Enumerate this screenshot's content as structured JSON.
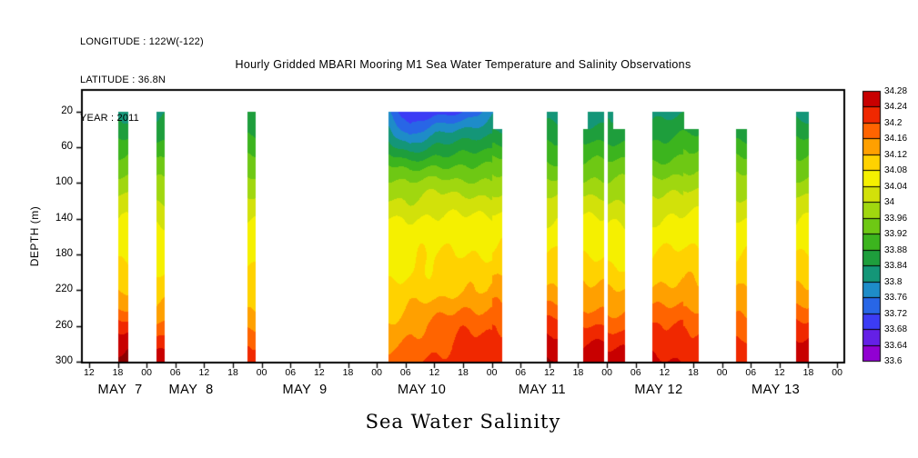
{
  "header": {
    "line1": "LONGITUDE : 122W(-122)",
    "line2": "LATITUDE : 36.8N",
    "line3": "YEAR : 2011"
  },
  "title": "Hourly Gridded MBARI Mooring M1 Sea Water Temperature and Salinity Observations",
  "bottom_label": "Sea Water Salinity",
  "chart_data": {
    "type": "heatmap",
    "title": "Hourly Gridded MBARI Mooring M1 Sea Water Temperature and Salinity Observations",
    "xlabel": "Sea Water Salinity",
    "ylabel": "DEPTH (m)",
    "y_ticks": [
      20,
      60,
      100,
      140,
      180,
      220,
      260,
      300
    ],
    "y_range_depth": [
      -4,
      301
    ],
    "x_range_hours": [
      10.5,
      169.5
    ],
    "x_tick_start_hour": 12,
    "x_tick_step_hours": 6,
    "x_tick_labels": [
      "12",
      "18",
      "00",
      "06",
      "12",
      "18",
      "00",
      "06",
      "12",
      "18",
      "00",
      "06",
      "12",
      "18",
      "00",
      "06",
      "12",
      "18",
      "00",
      "06",
      "12",
      "18",
      "00",
      "06",
      "12",
      "18",
      "00"
    ],
    "day_labels": [
      {
        "label": "MAY  7",
        "hour": 18.5
      },
      {
        "label": "MAY  8",
        "hour": 33.3
      },
      {
        "label": "MAY  9",
        "hour": 57.0
      },
      {
        "label": "MAY 10",
        "hour": 81.4
      },
      {
        "label": "MAY 11",
        "hour": 106.5
      },
      {
        "label": "MAY 12",
        "hour": 130.8
      },
      {
        "label": "MAY 13",
        "hour": 155.2
      }
    ],
    "colorbar": {
      "levels": [
        33.6,
        33.64,
        33.68,
        33.72,
        33.76,
        33.8,
        33.84,
        33.88,
        33.92,
        33.96,
        34.0,
        34.04,
        34.08,
        34.12,
        34.16,
        34.2,
        34.24,
        34.28
      ],
      "labels_top_to_bottom": [
        "34.28",
        "34.24",
        "34.2",
        "34.16",
        "34.12",
        "34.08",
        "34.04",
        "34",
        "33.96",
        "33.92",
        "33.88",
        "33.84",
        "33.8",
        "33.76",
        "33.72",
        "33.68",
        "33.64",
        "33.6"
      ],
      "colors_ascending": [
        "#9100d2",
        "#6420e6",
        "#3c3cf5",
        "#2866e6",
        "#1e8cc8",
        "#149678",
        "#1e9e3c",
        "#3cb41e",
        "#6ec814",
        "#a0d70f",
        "#d2e10a",
        "#f5f000",
        "#ffd200",
        "#ffa000",
        "#ff6400",
        "#f02800",
        "#c80000"
      ],
      "over_color": "#8c0000",
      "under_color": "#d200f0"
    },
    "depth_levels": [
      20,
      40,
      60,
      80,
      100,
      120,
      140,
      160,
      180,
      200,
      220,
      240,
      260,
      280,
      300
    ],
    "segments": [
      {
        "start": 18.0,
        "end": 20.0,
        "top": 20,
        "keyframes": [
          {
            "f": 0,
            "v": [
              33.83,
              33.86,
              33.9,
              33.94,
              33.98,
              34.01,
              34.04,
              34.06,
              34.07,
              34.09,
              34.12,
              34.16,
              34.22,
              34.27,
              34.3
            ]
          }
        ]
      },
      {
        "start": 26.0,
        "end": 27.5,
        "top": 20,
        "keyframes": [
          {
            "f": 0,
            "v": [
              33.83,
              33.86,
              33.89,
              33.93,
              33.97,
              34.0,
              34.03,
              34.05,
              34.06,
              34.08,
              34.1,
              34.13,
              34.17,
              34.22,
              34.26
            ]
          }
        ]
      },
      {
        "start": 45.0,
        "end": 46.5,
        "top": 20,
        "keyframes": [
          {
            "f": 0,
            "v": [
              33.84,
              33.87,
              33.9,
              33.94,
              33.98,
              34.01,
              34.04,
              34.06,
              34.07,
              34.08,
              34.1,
              34.12,
              34.15,
              34.19,
              34.23
            ]
          }
        ]
      },
      {
        "start": 74.5,
        "end": 96.0,
        "top": 20,
        "keyframes": [
          {
            "f": 0.0,
            "v": [
              33.76,
              33.81,
              33.86,
              33.92,
              33.97,
              34.01,
              34.04,
              34.05,
              34.06,
              34.07,
              34.08,
              34.1,
              34.13,
              34.15,
              34.17
            ]
          },
          {
            "f": 0.2,
            "v": [
              33.67,
              33.73,
              33.82,
              33.9,
              33.96,
              34.0,
              34.04,
              34.06,
              34.07,
              34.08,
              34.1,
              34.12,
              34.15,
              34.17,
              34.19
            ]
          },
          {
            "f": 0.45,
            "v": [
              33.7,
              33.78,
              33.85,
              33.92,
              33.98,
              34.02,
              34.05,
              34.07,
              34.08,
              34.09,
              34.1,
              34.14,
              34.17,
              34.19,
              34.21
            ]
          },
          {
            "f": 0.7,
            "v": [
              33.72,
              33.8,
              33.86,
              33.92,
              33.97,
              34.01,
              34.05,
              34.07,
              34.08,
              34.1,
              34.12,
              34.16,
              34.19,
              34.21,
              34.22
            ]
          },
          {
            "f": 1.0,
            "v": [
              33.79,
              33.83,
              33.87,
              33.92,
              33.97,
              34.01,
              34.04,
              34.06,
              34.08,
              34.1,
              34.12,
              34.16,
              34.19,
              34.21,
              34.22
            ]
          }
        ]
      },
      {
        "start": 96.0,
        "end": 98.0,
        "top": 40,
        "keyframes": [
          {
            "f": 0,
            "v": [
              33.8,
              33.84,
              33.89,
              33.94,
              33.98,
              34.02,
              34.05,
              34.07,
              34.09,
              34.11,
              34.14,
              34.17,
              34.2,
              34.21,
              34.22
            ]
          }
        ]
      },
      {
        "start": 107.5,
        "end": 109.5,
        "top": 20,
        "keyframes": [
          {
            "f": 0,
            "v": [
              33.82,
              33.85,
              33.89,
              33.93,
              33.97,
              34.01,
              34.04,
              34.06,
              34.08,
              34.1,
              34.13,
              34.17,
              34.22,
              34.26,
              34.29
            ]
          }
        ]
      },
      {
        "start": 115.0,
        "end": 116.0,
        "top": 40,
        "keyframes": [
          {
            "f": 0,
            "v": [
              33.82,
              33.85,
              33.89,
              33.93,
              33.97,
              34.01,
              34.04,
              34.06,
              34.08,
              34.1,
              34.13,
              34.16,
              34.2,
              34.24,
              34.27
            ]
          }
        ]
      },
      {
        "start": 116.0,
        "end": 119.2,
        "top": 20,
        "keyframes": [
          {
            "f": 0,
            "v": [
              33.82,
              33.85,
              33.89,
              33.93,
              33.97,
              34.01,
              34.04,
              34.06,
              34.08,
              34.1,
              34.13,
              34.16,
              34.2,
              34.24,
              34.27
            ]
          }
        ]
      },
      {
        "start": 120.2,
        "end": 121.2,
        "top": 20,
        "keyframes": [
          {
            "f": 0,
            "v": [
              33.83,
              33.86,
              33.89,
              33.93,
              33.97,
              34.0,
              34.03,
              34.05,
              34.07,
              34.09,
              34.12,
              34.15,
              34.19,
              34.23,
              34.26
            ]
          }
        ]
      },
      {
        "start": 121.2,
        "end": 123.5,
        "top": 40,
        "keyframes": [
          {
            "f": 0,
            "v": [
              33.83,
              33.86,
              33.89,
              33.93,
              33.97,
              34.0,
              34.03,
              34.05,
              34.07,
              34.09,
              34.12,
              34.15,
              34.19,
              34.23,
              34.26
            ]
          }
        ]
      },
      {
        "start": 129.5,
        "end": 136.0,
        "top": 20,
        "keyframes": [
          {
            "f": 0,
            "v": [
              33.82,
              33.85,
              33.89,
              33.93,
              33.97,
              34.01,
              34.04,
              34.06,
              34.08,
              34.1,
              34.13,
              34.16,
              34.2,
              34.23,
              34.25
            ]
          },
          {
            "f": 1,
            "v": [
              33.84,
              33.87,
              33.9,
              33.94,
              33.98,
              34.01,
              34.05,
              34.07,
              34.09,
              34.11,
              34.14,
              34.17,
              34.2,
              34.22,
              34.24
            ]
          }
        ]
      },
      {
        "start": 136.0,
        "end": 139.0,
        "top": 40,
        "keyframes": [
          {
            "f": 0,
            "v": [
              33.84,
              33.87,
              33.91,
              33.95,
              33.99,
              34.02,
              34.05,
              34.07,
              34.09,
              34.11,
              34.13,
              34.16,
              34.19,
              34.21,
              34.23
            ]
          }
        ]
      },
      {
        "start": 147.0,
        "end": 149.0,
        "top": 40,
        "keyframes": [
          {
            "f": 0,
            "v": [
              33.83,
              33.86,
              33.9,
              33.94,
              33.98,
              34.01,
              34.04,
              34.06,
              34.08,
              34.1,
              34.12,
              34.15,
              34.18,
              34.21,
              34.23
            ]
          }
        ]
      },
      {
        "start": 159.5,
        "end": 162.0,
        "top": 20,
        "keyframes": [
          {
            "f": 0,
            "v": [
              33.83,
              33.86,
              33.9,
              33.94,
              33.97,
              34.01,
              34.04,
              34.06,
              34.08,
              34.1,
              34.13,
              34.17,
              34.21,
              34.25,
              34.28
            ]
          }
        ]
      }
    ]
  }
}
